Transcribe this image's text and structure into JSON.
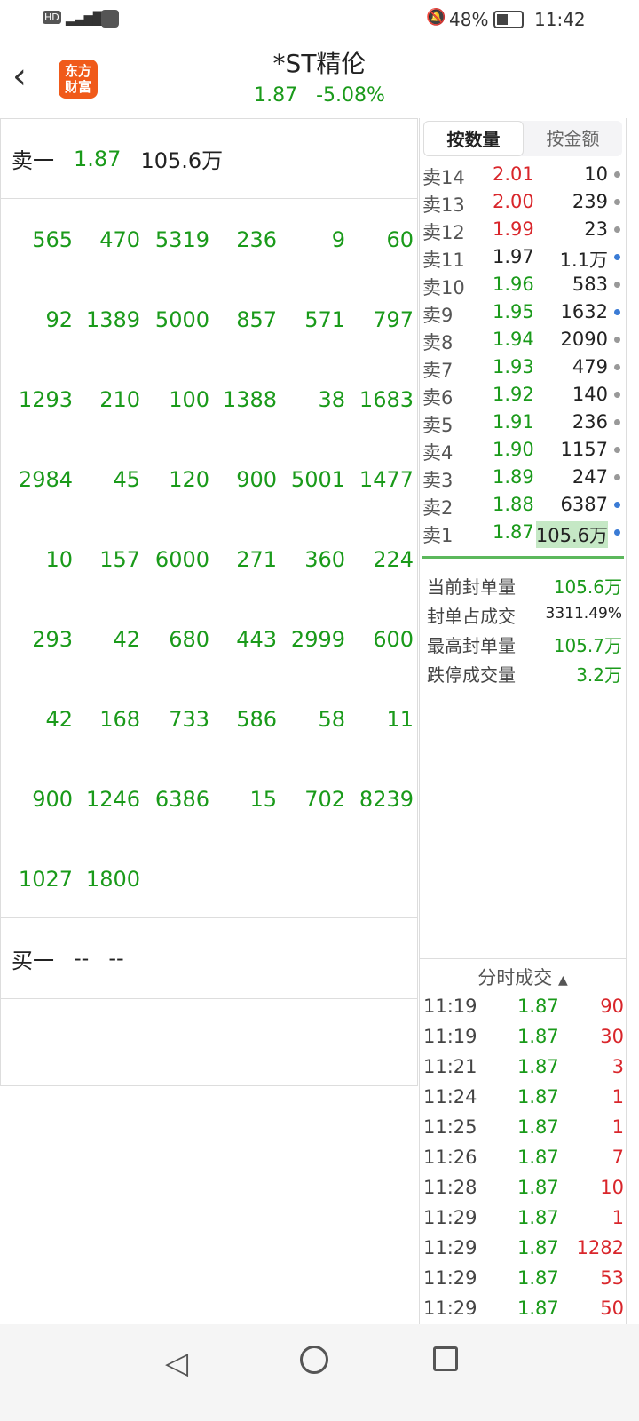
{
  "status_bar": {
    "left_icons": [
      "hd-icon",
      "5g-signal-icon",
      "app-bag-icon"
    ],
    "mute_icon": "bell-off-icon",
    "battery": "48%",
    "time": "11:42"
  },
  "header": {
    "title": "*ST精伦",
    "price": "1.87",
    "change": "-5.08%",
    "logo_text": "东方财富"
  },
  "left": {
    "sell1": {
      "label": "卖一",
      "price": "1.87",
      "volume": "105.6万"
    },
    "queue": [
      [
        "565",
        "470",
        "5319",
        "236",
        "9",
        "60"
      ],
      [
        "92",
        "1389",
        "5000",
        "857",
        "571",
        "797"
      ],
      [
        "1293",
        "210",
        "100",
        "1388",
        "38",
        "1683"
      ],
      [
        "2984",
        "45",
        "120",
        "900",
        "5001",
        "1477"
      ],
      [
        "10",
        "157",
        "6000",
        "271",
        "360",
        "224"
      ],
      [
        "293",
        "42",
        "680",
        "443",
        "2999",
        "600"
      ],
      [
        "42",
        "168",
        "733",
        "586",
        "58",
        "11"
      ],
      [
        "900",
        "1246",
        "6386",
        "15",
        "702",
        "8239"
      ],
      [
        "1027",
        "1800"
      ]
    ],
    "buy1": {
      "label": "买一",
      "price": "--",
      "volume": "--"
    }
  },
  "right": {
    "tabs": [
      {
        "label": "按数量",
        "active": true
      },
      {
        "label": "按金额",
        "active": false
      }
    ],
    "orderbook": [
      {
        "label": "卖14",
        "price": "2.01",
        "vol": "10",
        "pc": "r",
        "dot": "#999"
      },
      {
        "label": "卖13",
        "price": "2.00",
        "vol": "239",
        "pc": "r",
        "dot": "#999"
      },
      {
        "label": "卖12",
        "price": "1.99",
        "vol": "23",
        "pc": "r",
        "dot": "#999"
      },
      {
        "label": "卖11",
        "price": "1.97",
        "vol": "1.1万",
        "pc": "k",
        "dot": "#3a7bd5"
      },
      {
        "label": "卖10",
        "price": "1.96",
        "vol": "583",
        "pc": "g",
        "dot": "#999"
      },
      {
        "label": "卖9",
        "price": "1.95",
        "vol": "1632",
        "pc": "g",
        "dot": "#3a7bd5"
      },
      {
        "label": "卖8",
        "price": "1.94",
        "vol": "2090",
        "pc": "g",
        "dot": "#999"
      },
      {
        "label": "卖7",
        "price": "1.93",
        "vol": "479",
        "pc": "g",
        "dot": "#999"
      },
      {
        "label": "卖6",
        "price": "1.92",
        "vol": "140",
        "pc": "g",
        "dot": "#999"
      },
      {
        "label": "卖5",
        "price": "1.91",
        "vol": "236",
        "pc": "g",
        "dot": "#999"
      },
      {
        "label": "卖4",
        "price": "1.90",
        "vol": "1157",
        "pc": "g",
        "dot": "#999"
      },
      {
        "label": "卖3",
        "price": "1.89",
        "vol": "247",
        "pc": "g",
        "dot": "#999"
      },
      {
        "label": "卖2",
        "price": "1.88",
        "vol": "6387",
        "pc": "g",
        "dot": "#3a7bd5"
      },
      {
        "label": "卖1",
        "price": "1.87",
        "vol": "105.6万",
        "pc": "g",
        "dot": "#3a7bd5",
        "highlight": true
      }
    ],
    "stats": [
      {
        "label": "当前封单量",
        "value": "105.6万",
        "color": "g"
      },
      {
        "label": "封单占成交",
        "value": "3311.49%",
        "color": "k"
      },
      {
        "label": "最高封单量",
        "value": "105.7万",
        "color": "g"
      },
      {
        "label": "跌停成交量",
        "value": "3.2万",
        "color": "g"
      }
    ],
    "trades_title": "分时成交",
    "trades": [
      [
        "11:19",
        "1.87",
        "90"
      ],
      [
        "11:19",
        "1.87",
        "30"
      ],
      [
        "11:21",
        "1.87",
        "3"
      ],
      [
        "11:24",
        "1.87",
        "1"
      ],
      [
        "11:25",
        "1.87",
        "1"
      ],
      [
        "11:26",
        "1.87",
        "7"
      ],
      [
        "11:28",
        "1.87",
        "10"
      ],
      [
        "11:29",
        "1.87",
        "1"
      ],
      [
        "11:29",
        "1.87",
        "1282"
      ],
      [
        "11:29",
        "1.87",
        "53"
      ],
      [
        "11:29",
        "1.87",
        "50"
      ]
    ]
  },
  "colors": {
    "green": "#1a9a1a",
    "red": "#d9262b",
    "highlight": "#c5e8c5",
    "divider": "#5cb85c"
  }
}
